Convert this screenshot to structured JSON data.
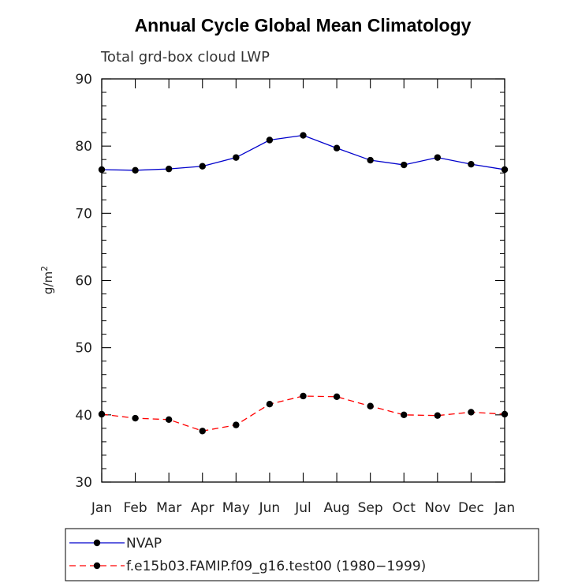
{
  "chart_data": {
    "type": "line",
    "title": "Annual Cycle Global Mean Climatology",
    "subtitle": "Total grd-box cloud LWP",
    "ylabel": "g/m",
    "ylabel_sup": "2",
    "ylim": [
      30,
      90
    ],
    "yticks": [
      "30",
      "40",
      "50",
      "60",
      "70",
      "80",
      "90"
    ],
    "categories": [
      "Jan",
      "Feb",
      "Mar",
      "Apr",
      "May",
      "Jun",
      "Jul",
      "Aug",
      "Sep",
      "Oct",
      "Nov",
      "Dec",
      "Jan"
    ],
    "series": [
      {
        "name": "NVAP",
        "color": "#0000cc",
        "dash": "solid",
        "values": [
          76.5,
          76.4,
          76.6,
          77.0,
          78.3,
          80.9,
          81.6,
          79.7,
          77.9,
          77.2,
          78.3,
          77.3,
          76.5
        ]
      },
      {
        "name": "f.e15b03.FAMIP.f09_g16.test00 (1980−1999)",
        "color": "#ff0000",
        "dash": "dashed",
        "values": [
          40.1,
          39.5,
          39.3,
          37.6,
          38.5,
          41.6,
          42.8,
          42.7,
          41.3,
          40.0,
          39.9,
          40.4,
          40.1
        ]
      }
    ]
  }
}
